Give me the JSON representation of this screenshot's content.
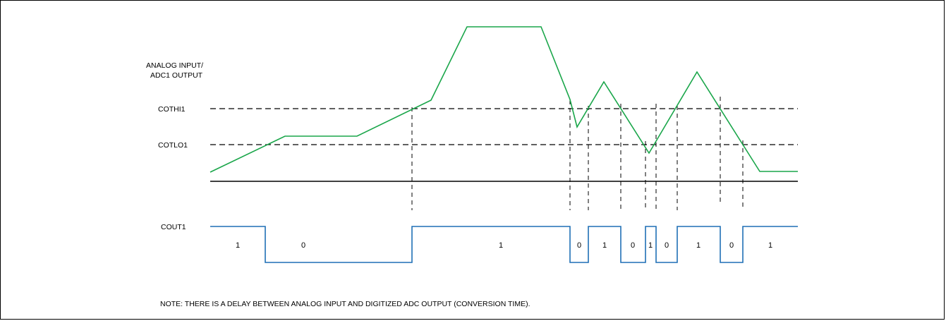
{
  "labels": {
    "analog_line1": "ANALOG INPUT/",
    "analog_line2": "ADC1 OUTPUT",
    "cothi": "COTHI1",
    "cotlo": "COTLO1",
    "cout": "COUT1",
    "note": "NOTE: THERE IS A DELAY BETWEEN ANALOG INPUT AND DIGITIZED ADC OUTPUT (CONVERSION TIME)."
  },
  "bits": [
    "1",
    "0",
    "1",
    "0",
    "1",
    "0",
    "1",
    "0",
    "1",
    "0",
    "1"
  ],
  "colors": {
    "analog": "#1aa64a",
    "digital": "#1f6fb5",
    "axis": "#000000",
    "threshold": "#000000"
  }
}
